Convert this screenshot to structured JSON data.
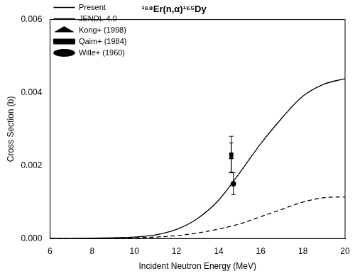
{
  "chart_data": {
    "type": "line",
    "title": "¹⁶⁸Er(n,α)¹⁶⁵Dy",
    "x_label": "Incident Neutron Energy (MeV)",
    "y_label": "Cross Section (b)",
    "xlim": [
      6,
      20
    ],
    "xticks": [
      6,
      8,
      10,
      12,
      14,
      16,
      18,
      20
    ],
    "ylim": [
      0,
      0.006
    ],
    "yticks": [
      {
        "value": 0,
        "label": "0.000"
      },
      {
        "value": 0.002,
        "label": "0.002"
      },
      {
        "value": 0.004,
        "label": "0.004"
      },
      {
        "value": 0.006,
        "label": "0.006"
      }
    ],
    "grid": false,
    "legend": "upper left",
    "series": [
      {
        "name": "Present",
        "type": "line",
        "color": "#000000",
        "line_style": "solid",
        "x": [
          6,
          7,
          8,
          9,
          10,
          11,
          12,
          13,
          14,
          15,
          16,
          17,
          18,
          19,
          20
        ],
        "values": [
          0,
          0,
          1e-05,
          2e-05,
          4e-05,
          0.0001,
          0.00025,
          0.00055,
          0.00105,
          0.0018,
          0.0026,
          0.0033,
          0.0039,
          0.00423,
          0.00438
        ]
      },
      {
        "name": "JENDL-4.0",
        "type": "line",
        "color": "#000000",
        "line_style": "dashed",
        "x": [
          6,
          7,
          8,
          9,
          10,
          11,
          12,
          13,
          14,
          15,
          16,
          17,
          18,
          19,
          20
        ],
        "values": [
          0,
          0,
          0,
          1e-05,
          2e-05,
          4e-05,
          8e-05,
          0.00015,
          0.00026,
          0.0004,
          0.0006,
          0.0008,
          0.001,
          0.00112,
          0.00114
        ]
      },
      {
        "name": "Kong+ (1998)",
        "type": "scatter",
        "color": "#000000",
        "marker": "triangle",
        "x": [
          14.6
        ],
        "values": [
          0.00222
        ],
        "error": [
          0.0004
        ]
      },
      {
        "name": "Qaim+ (1984)",
        "type": "scatter",
        "color": "#000000",
        "marker": "square",
        "x": [
          14.6
        ],
        "values": [
          0.0023
        ],
        "error": [
          0.0005
        ]
      },
      {
        "name": "Wille+ (1960)",
        "type": "scatter",
        "color": "#000000",
        "marker": "circle",
        "x": [
          14.7
        ],
        "values": [
          0.0015
        ],
        "error": [
          0.0003
        ]
      }
    ]
  }
}
